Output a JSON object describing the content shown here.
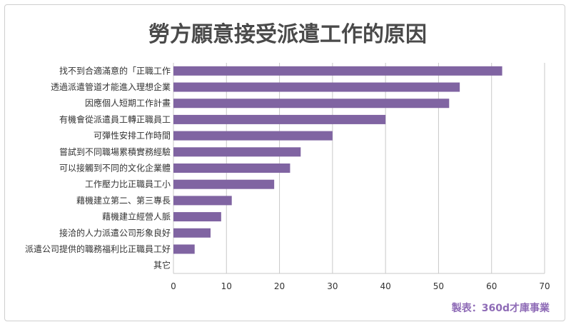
{
  "chart_data": {
    "type": "bar",
    "orientation": "horizontal",
    "title": "勞方願意接受派遣工作的原因",
    "categories": [
      "找不到合適滿意的「正職工作",
      "透過派遣管道才能進入理想企業",
      "因應個人短期工作計畫",
      "有機會從派遣員工轉正職員工",
      "可彈性安排工作時間",
      "嘗試到不同職場累積實務經驗",
      "可以接觸到不同的文化企業體",
      "工作壓力比正職員工小",
      "藉機建立第二、第三專長",
      "藉機建立經營人脈",
      "接洽的人力派遣公司形象良好",
      "派遣公司提供的職務福利比正職員工好",
      "其它"
    ],
    "values": [
      62,
      54,
      52,
      40,
      30,
      24,
      22,
      19,
      11,
      9,
      7,
      4,
      0
    ],
    "xlim": [
      0,
      70
    ],
    "xticks": [
      0,
      10,
      20,
      30,
      40,
      50,
      60,
      70
    ],
    "grid": true,
    "bar_color": "#8064a2",
    "grid_color": "#c8c8c8"
  },
  "credit": "製表：360d才庫事業"
}
